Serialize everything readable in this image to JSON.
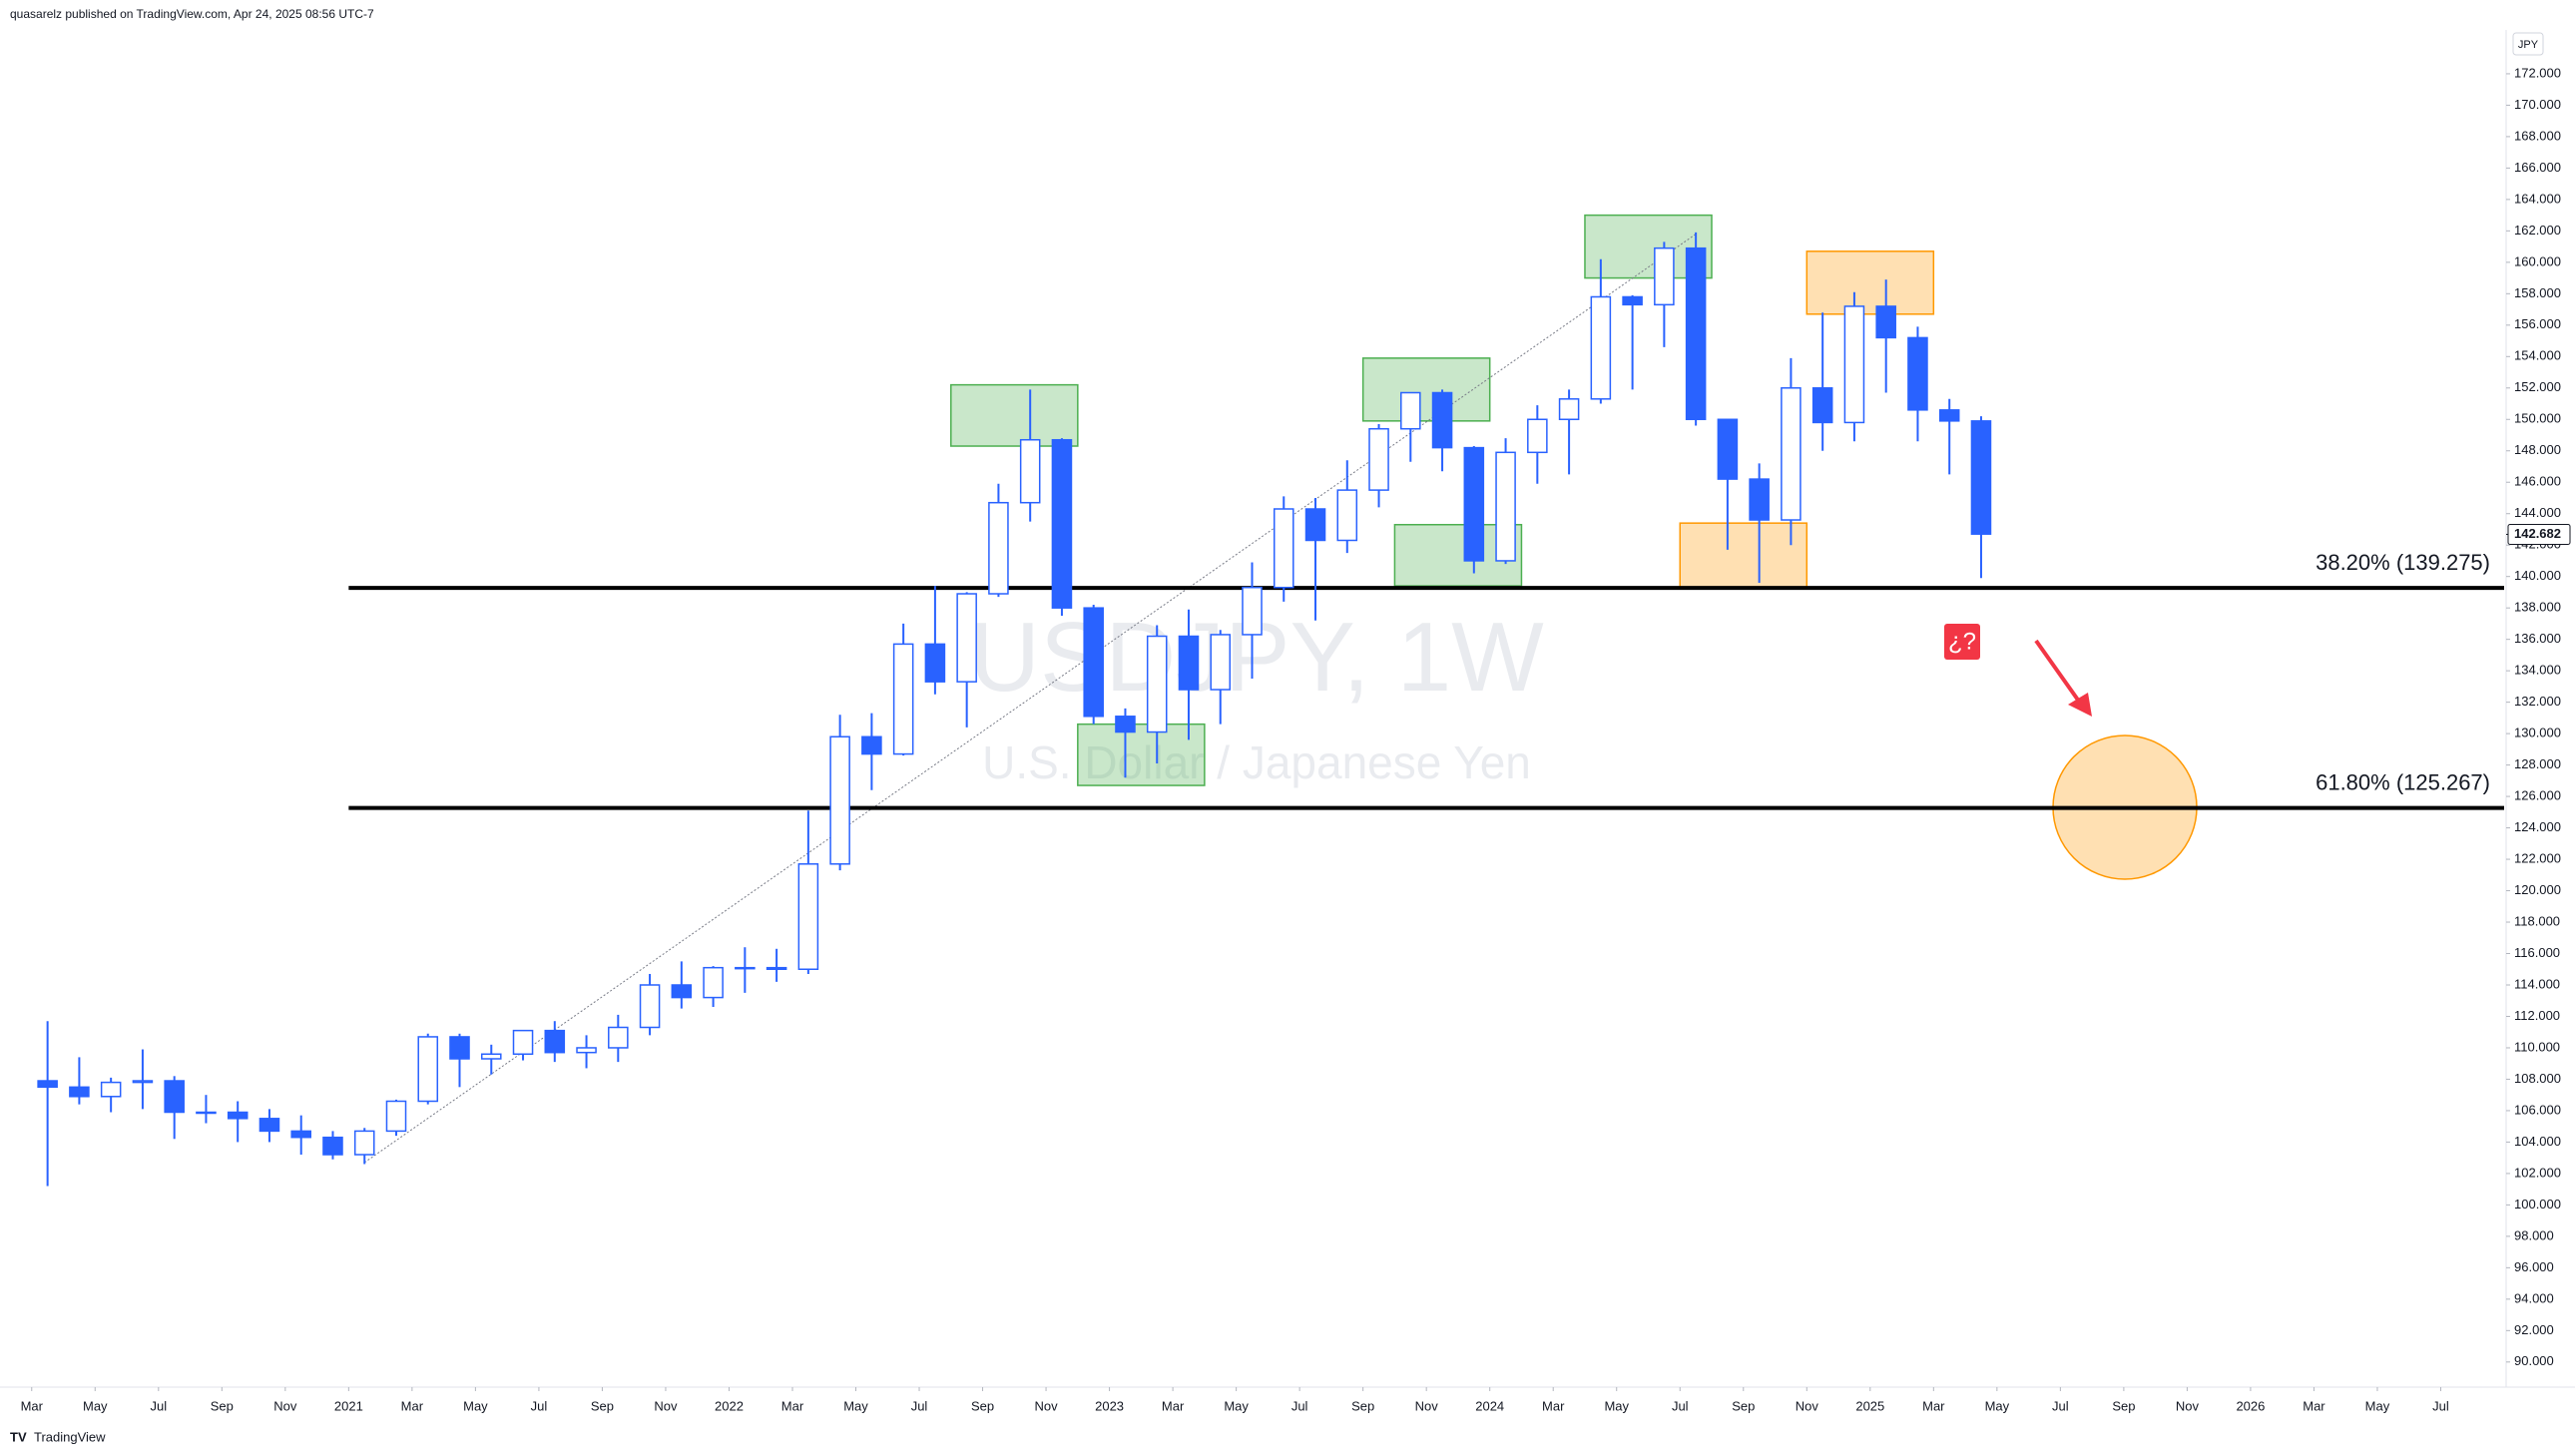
{
  "chart_data": {
    "type": "candlestick",
    "header": "quasarelz published on TradingView.com, Apr 24, 2025 08:56 UTC-7",
    "title": "USDJPY, 1W",
    "subtitle": "U.S. Dollar / Japanese Yen",
    "footer": "TradingView",
    "y_unit": "JPY",
    "marker_text": "¿?",
    "x": [
      "2020-03",
      "2020-04",
      "2020-05",
      "2020-06",
      "2020-07",
      "2020-08",
      "2020-09",
      "2020-10",
      "2020-11",
      "2020-12",
      "2021-01",
      "2021-02",
      "2021-03",
      "2021-04",
      "2021-05",
      "2021-06",
      "2021-07",
      "2021-08",
      "2021-09",
      "2021-10",
      "2021-11",
      "2021-12",
      "2022-01",
      "2022-02",
      "2022-03",
      "2022-04",
      "2022-05",
      "2022-06",
      "2022-07",
      "2022-08",
      "2022-09",
      "2022-10",
      "2022-11",
      "2022-12",
      "2023-01",
      "2023-02",
      "2023-03",
      "2023-04",
      "2023-05",
      "2023-06",
      "2023-07",
      "2023-08",
      "2023-09",
      "2023-10",
      "2023-11",
      "2023-12",
      "2024-01",
      "2024-02",
      "2024-03",
      "2024-04",
      "2024-05",
      "2024-06",
      "2024-07",
      "2024-08",
      "2024-09",
      "2024-10",
      "2024-11",
      "2024-12",
      "2025-01",
      "2025-02",
      "2025-03",
      "2025-04"
    ],
    "open": [
      107.9,
      107.5,
      106.9,
      107.8,
      107.9,
      105.9,
      105.9,
      105.5,
      104.7,
      104.3,
      103.2,
      104.7,
      106.6,
      110.7,
      109.3,
      109.6,
      111.1,
      109.7,
      110.0,
      111.3,
      114.0,
      113.2,
      115.1,
      115.1,
      115.0,
      121.7,
      129.8,
      128.7,
      135.7,
      133.3,
      138.9,
      144.7,
      148.7,
      138.0,
      131.1,
      130.1,
      136.2,
      132.8,
      136.3,
      139.3,
      144.3,
      142.3,
      145.5,
      149.4,
      151.7,
      148.2,
      141.0,
      147.9,
      150.0,
      151.3,
      157.8,
      157.3,
      160.9,
      150.0,
      146.2,
      143.6,
      152.0,
      149.8,
      157.2,
      155.2,
      150.6,
      149.9
    ],
    "high": [
      111.7,
      109.4,
      108.1,
      109.9,
      108.2,
      107.0,
      106.6,
      106.1,
      105.7,
      104.7,
      104.9,
      106.7,
      110.9,
      110.9,
      110.2,
      111.1,
      111.7,
      110.8,
      112.1,
      114.7,
      115.5,
      115.2,
      116.4,
      116.3,
      125.1,
      131.2,
      131.3,
      137.0,
      139.4,
      139.0,
      145.9,
      151.9,
      148.8,
      138.2,
      131.6,
      136.9,
      137.9,
      136.6,
      140.9,
      145.1,
      145.0,
      147.4,
      149.7,
      151.7,
      151.9,
      148.3,
      148.8,
      150.9,
      151.9,
      160.2,
      157.9,
      161.3,
      161.9,
      150.0,
      147.2,
      153.9,
      156.8,
      158.1,
      158.9,
      155.9,
      151.3,
      150.2
    ],
    "low": [
      101.2,
      106.4,
      105.9,
      106.1,
      104.2,
      105.2,
      104.0,
      104.0,
      103.2,
      102.9,
      102.6,
      104.4,
      106.4,
      107.5,
      108.3,
      109.2,
      109.1,
      108.7,
      109.1,
      110.8,
      112.5,
      112.6,
      113.5,
      114.2,
      114.7,
      121.3,
      126.4,
      128.6,
      132.5,
      130.4,
      138.7,
      143.5,
      137.5,
      130.6,
      127.2,
      128.1,
      129.6,
      130.6,
      133.5,
      138.4,
      137.2,
      141.5,
      144.4,
      147.3,
      146.7,
      140.2,
      140.8,
      145.9,
      146.5,
      151.0,
      151.9,
      154.6,
      149.6,
      141.7,
      139.6,
      142.0,
      148.0,
      148.6,
      151.7,
      148.6,
      146.5,
      139.9
    ],
    "close": [
      107.5,
      106.9,
      107.8,
      107.9,
      105.9,
      105.9,
      105.5,
      104.7,
      104.3,
      103.2,
      104.7,
      106.6,
      110.7,
      109.3,
      109.6,
      111.1,
      109.7,
      110.0,
      111.3,
      114.0,
      113.2,
      115.1,
      115.1,
      115.0,
      121.7,
      129.8,
      128.7,
      135.7,
      133.3,
      138.9,
      144.7,
      148.7,
      138.0,
      131.1,
      130.1,
      136.2,
      132.8,
      136.3,
      139.3,
      144.3,
      142.3,
      145.5,
      149.4,
      151.7,
      148.2,
      141.0,
      147.9,
      150.0,
      151.3,
      157.8,
      157.3,
      160.9,
      150.0,
      146.2,
      143.6,
      152.0,
      149.8,
      157.2,
      155.2,
      150.6,
      149.9,
      142.7
    ],
    "up_color": "#ffffff",
    "down_color": "#2962ff",
    "wick_color": "#2962ff",
    "xlim": [
      "2020-02",
      "2026-09"
    ],
    "xticks": [
      {
        "value": "2020-03",
        "label": "Mar"
      },
      {
        "value": "2020-05",
        "label": "May"
      },
      {
        "value": "2020-07",
        "label": "Jul"
      },
      {
        "value": "2020-09",
        "label": "Sep"
      },
      {
        "value": "2020-11",
        "label": "Nov"
      },
      {
        "value": "2021-01",
        "label": "2021"
      },
      {
        "value": "2021-03",
        "label": "Mar"
      },
      {
        "value": "2021-05",
        "label": "May"
      },
      {
        "value": "2021-07",
        "label": "Jul"
      },
      {
        "value": "2021-09",
        "label": "Sep"
      },
      {
        "value": "2021-11",
        "label": "Nov"
      },
      {
        "value": "2022-01",
        "label": "2022"
      },
      {
        "value": "2022-03",
        "label": "Mar"
      },
      {
        "value": "2022-05",
        "label": "May"
      },
      {
        "value": "2022-07",
        "label": "Jul"
      },
      {
        "value": "2022-09",
        "label": "Sep"
      },
      {
        "value": "2022-11",
        "label": "Nov"
      },
      {
        "value": "2023-01",
        "label": "2023"
      },
      {
        "value": "2023-03",
        "label": "Mar"
      },
      {
        "value": "2023-05",
        "label": "May"
      },
      {
        "value": "2023-07",
        "label": "Jul"
      },
      {
        "value": "2023-09",
        "label": "Sep"
      },
      {
        "value": "2023-11",
        "label": "Nov"
      },
      {
        "value": "2024-01",
        "label": "2024"
      },
      {
        "value": "2024-03",
        "label": "Mar"
      },
      {
        "value": "2024-05",
        "label": "May"
      },
      {
        "value": "2024-07",
        "label": "Jul"
      },
      {
        "value": "2024-09",
        "label": "Sep"
      },
      {
        "value": "2024-11",
        "label": "Nov"
      },
      {
        "value": "2025-01",
        "label": "2025"
      },
      {
        "value": "2025-03",
        "label": "Mar"
      },
      {
        "value": "2025-05",
        "label": "May"
      },
      {
        "value": "2025-07",
        "label": "Jul"
      },
      {
        "value": "2025-09",
        "label": "Sep"
      },
      {
        "value": "2025-11",
        "label": "Nov"
      },
      {
        "value": "2026-01",
        "label": "2026"
      },
      {
        "value": "2026-03",
        "label": "Mar"
      },
      {
        "value": "2026-05",
        "label": "May"
      },
      {
        "value": "2026-07",
        "label": "Jul"
      }
    ],
    "ylim": [
      88.4,
      174.6
    ],
    "yticks": [
      {
        "value": 90,
        "label": "90.000"
      },
      {
        "value": 92,
        "label": "92.000"
      },
      {
        "value": 94,
        "label": "94.000"
      },
      {
        "value": 96,
        "label": "96.000"
      },
      {
        "value": 98,
        "label": "98.000"
      },
      {
        "value": 100,
        "label": "100.000"
      },
      {
        "value": 102,
        "label": "102.000"
      },
      {
        "value": 104,
        "label": "104.000"
      },
      {
        "value": 106,
        "label": "106.000"
      },
      {
        "value": 108,
        "label": "108.000"
      },
      {
        "value": 110,
        "label": "110.000"
      },
      {
        "value": 112,
        "label": "112.000"
      },
      {
        "value": 114,
        "label": "114.000"
      },
      {
        "value": 116,
        "label": "116.000"
      },
      {
        "value": 118,
        "label": "118.000"
      },
      {
        "value": 120,
        "label": "120.000"
      },
      {
        "value": 122,
        "label": "122.000"
      },
      {
        "value": 124,
        "label": "124.000"
      },
      {
        "value": 126,
        "label": "126.000"
      },
      {
        "value": 128,
        "label": "128.000"
      },
      {
        "value": 130,
        "label": "130.000"
      },
      {
        "value": 132,
        "label": "132.000"
      },
      {
        "value": 134,
        "label": "134.000"
      },
      {
        "value": 136,
        "label": "136.000"
      },
      {
        "value": 138,
        "label": "138.000"
      },
      {
        "value": 140,
        "label": "140.000"
      },
      {
        "value": 142,
        "label": "142.000"
      },
      {
        "value": 144,
        "label": "144.000"
      },
      {
        "value": 146,
        "label": "146.000"
      },
      {
        "value": 148,
        "label": "148.000"
      },
      {
        "value": 150,
        "label": "150.000"
      },
      {
        "value": 152,
        "label": "152.000"
      },
      {
        "value": 154,
        "label": "154.000"
      },
      {
        "value": 156,
        "label": "156.000"
      },
      {
        "value": 158,
        "label": "158.000"
      },
      {
        "value": 160,
        "label": "160.000"
      },
      {
        "value": 162,
        "label": "162.000"
      },
      {
        "value": 164,
        "label": "164.000"
      },
      {
        "value": 166,
        "label": "166.000"
      },
      {
        "value": 168,
        "label": "168.000"
      },
      {
        "value": 170,
        "label": "170.000"
      },
      {
        "value": 172,
        "label": "172.000"
      }
    ],
    "grid": false,
    "last_price": {
      "value": 142.682,
      "label": "142.682"
    },
    "fib_levels": [
      {
        "label": "38.20% (139.275)",
        "value": 139.275,
        "start": "2021-01"
      },
      {
        "label": "61.80% (125.267)",
        "value": 125.267,
        "start": "2021-01"
      }
    ],
    "trendline": {
      "x": [
        "2021-01",
        "2024-07"
      ],
      "y": [
        102.7,
        161.8
      ]
    },
    "zones": [
      {
        "x0": "2022-08",
        "x1": "2022-12",
        "y0": 148.3,
        "y1": 152.2,
        "color": "#4caf50"
      },
      {
        "x0": "2022-12",
        "x1": "2023-04",
        "y0": 126.7,
        "y1": 130.6,
        "color": "#4caf50"
      },
      {
        "x0": "2023-09",
        "x1": "2024-01",
        "y0": 149.9,
        "y1": 153.9,
        "color": "#4caf50"
      },
      {
        "x0": "2023-10",
        "x1": "2024-02",
        "y0": 139.4,
        "y1": 143.3,
        "color": "#4caf50"
      },
      {
        "x0": "2024-04",
        "x1": "2024-08",
        "y0": 159.0,
        "y1": 163.0,
        "color": "#4caf50"
      },
      {
        "x0": "2024-11",
        "x1": "2025-03",
        "y0": 156.7,
        "y1": 160.7,
        "color": "#ff9800"
      },
      {
        "x0": "2024-07",
        "x1": "2024-11",
        "y0": 139.3,
        "y1": 143.4,
        "color": "#ff9800"
      }
    ]
  }
}
